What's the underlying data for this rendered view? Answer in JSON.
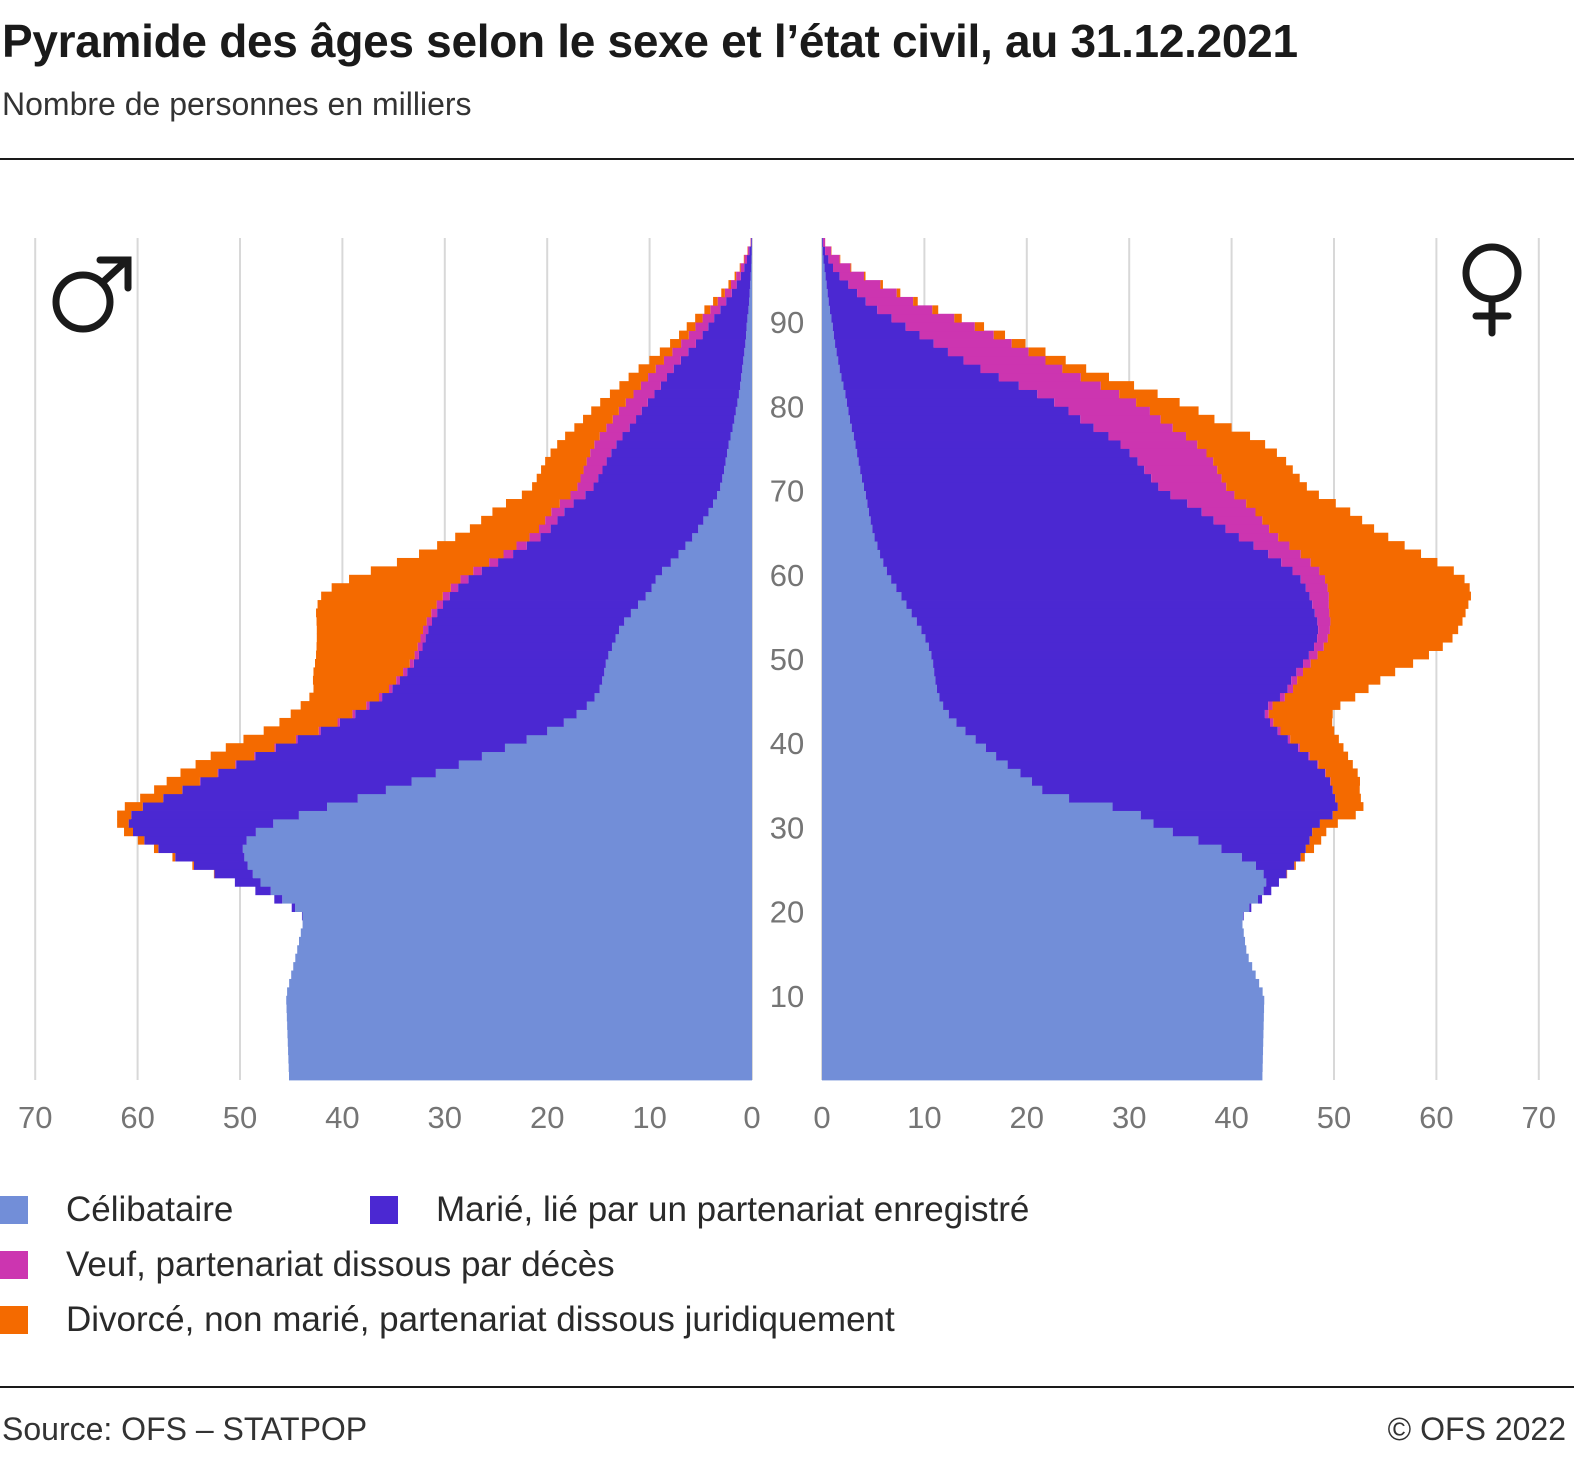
{
  "title": "Pyramide des âges selon le sexe et l’état civil, au 31.12.2021",
  "subtitle": "Nombre de personnes en milliers",
  "source": "Source: OFS – STATPOP",
  "copyright": "© OFS 2022",
  "colors": {
    "single": "#728ed8",
    "married": "#4b28d2",
    "widowed": "#cc35b0",
    "divorced": "#f46a00",
    "grid": "#d8d8d8",
    "tick_text": "#757575"
  },
  "symbols": {
    "male": "♂",
    "female": "♀"
  },
  "legend": [
    {
      "key": "single",
      "label": "Célibataire",
      "color": "#728ed8"
    },
    {
      "key": "married",
      "label": "Marié, lié par un partenariat enregistré",
      "color": "#4b28d2"
    },
    {
      "key": "widowed",
      "label": "Veuf, partenariat dissous par décès",
      "color": "#cc35b0"
    },
    {
      "key": "divorced",
      "label": "Divorcé, non marié, partenariat dissous juridiquement",
      "color": "#f46a00"
    }
  ],
  "chart_data": {
    "type": "bar",
    "orientation": "population-pyramid",
    "unit": "Nombre de personnes en milliers",
    "x_ticks_left": [
      "70",
      "60",
      "50",
      "40",
      "30",
      "20",
      "10",
      "0"
    ],
    "x_ticks_right": [
      "0",
      "10",
      "20",
      "30",
      "40",
      "50",
      "60",
      "70"
    ],
    "age_ticks": [
      "10",
      "20",
      "30",
      "40",
      "50",
      "60",
      "70",
      "80",
      "90"
    ],
    "xlim": [
      0,
      70
    ],
    "ylim": [
      0,
      100
    ],
    "categories": [
      "Célibataire",
      "Marié, lié par un partenariat enregistré",
      "Veuf, partenariat dissous par décès",
      "Divorcé, non marié, partenariat dissous juridiquement"
    ],
    "sexes": [
      "hommes",
      "femmes"
    ],
    "anchor_ages": [
      0,
      10,
      15,
      19,
      20,
      22,
      24,
      26,
      28,
      30,
      32,
      34,
      36,
      38,
      40,
      42,
      44,
      46,
      48,
      50,
      52,
      54,
      56,
      58,
      60,
      62,
      65,
      68,
      70,
      72,
      74,
      76,
      78,
      80,
      82,
      84,
      86,
      88,
      90,
      92,
      94,
      96,
      98,
      100
    ],
    "male": {
      "single": [
        45.2,
        45.5,
        44.5,
        43.8,
        44.0,
        46.5,
        48.5,
        49.5,
        49.8,
        48.0,
        43.0,
        37.0,
        32.0,
        27.5,
        23.0,
        19.0,
        16.5,
        15.0,
        14.5,
        14.2,
        13.5,
        12.8,
        11.5,
        10.0,
        9.2,
        7.5,
        5.5,
        4.0,
        3.2,
        2.8,
        2.5,
        2.2,
        1.8,
        1.5,
        1.2,
        1.0,
        0.8,
        0.6,
        0.5,
        0.3,
        0.2,
        0.1,
        0.05,
        0
      ],
      "married": [
        0,
        0,
        0,
        0,
        0.1,
        1.0,
        3.0,
        6.0,
        9.0,
        13.0,
        17.5,
        19.5,
        21.0,
        22.0,
        22.5,
        22.0,
        21.5,
        20.5,
        19.5,
        18.5,
        18.5,
        18.7,
        19.0,
        19.2,
        18.0,
        16.5,
        14.5,
        14.0,
        12.5,
        12.0,
        11.5,
        10.8,
        9.8,
        9.0,
        8.0,
        7.0,
        5.8,
        4.5,
        3.5,
        2.5,
        1.5,
        0.8,
        0.3,
        0
      ],
      "widowed": [
        0,
        0,
        0,
        0,
        0,
        0,
        0,
        0,
        0,
        0,
        0,
        0,
        0.05,
        0.1,
        0.15,
        0.2,
        0.3,
        0.3,
        0.4,
        0.4,
        0.5,
        0.5,
        0.6,
        0.7,
        0.8,
        0.9,
        1.1,
        1.3,
        1.5,
        1.8,
        2.0,
        2.2,
        2.3,
        2.2,
        2.0,
        1.8,
        1.6,
        1.4,
        1.2,
        0.9,
        0.6,
        0.4,
        0.2,
        0
      ],
      "divorced": [
        0,
        0,
        0,
        0,
        0,
        0,
        0,
        0.2,
        0.5,
        1.0,
        1.5,
        2.5,
        3.5,
        4.0,
        5.0,
        5.5,
        6.2,
        7.0,
        8.5,
        9.5,
        10.0,
        10.5,
        11.5,
        12.0,
        10.5,
        8.5,
        7.0,
        5.5,
        4.5,
        4.2,
        4.0,
        3.5,
        3.0,
        2.6,
        2.2,
        1.8,
        1.3,
        1.0,
        0.8,
        0.5,
        0.3,
        0.1,
        0.05,
        0
      ]
    },
    "female": {
      "single": [
        43.0,
        43.2,
        41.5,
        41.0,
        41.3,
        43.0,
        43.5,
        42.0,
        38.0,
        33.0,
        30.5,
        22.0,
        20.0,
        17.5,
        15.5,
        13.5,
        12.0,
        11.3,
        11.0,
        10.8,
        10.3,
        9.5,
        8.5,
        7.5,
        6.5,
        5.8,
        5.0,
        4.5,
        4.2,
        3.8,
        3.5,
        3.2,
        2.8,
        2.5,
        2.2,
        1.8,
        1.5,
        1.2,
        1.0,
        0.7,
        0.5,
        0.3,
        0.1,
        0
      ],
      "married": [
        0,
        0,
        0,
        0,
        0.1,
        0.5,
        1.5,
        4.5,
        9.5,
        15.0,
        20.0,
        28.0,
        29.5,
        30.5,
        30.5,
        30.5,
        31.0,
        34.0,
        35.0,
        36.5,
        38.0,
        39.0,
        39.5,
        40.0,
        40.0,
        38.5,
        35.0,
        32.0,
        29.0,
        28.0,
        27.0,
        25.5,
        23.0,
        21.0,
        18.0,
        14.5,
        11.5,
        9.0,
        6.5,
        4.0,
        2.5,
        1.0,
        0.3,
        0
      ],
      "widowed": [
        0,
        0,
        0,
        0,
        0,
        0,
        0,
        0,
        0,
        0,
        0,
        0,
        0.05,
        0.1,
        0.2,
        0.3,
        0.4,
        0.5,
        0.6,
        0.8,
        1.0,
        1.2,
        1.5,
        2.0,
        2.5,
        3.0,
        4.0,
        5.5,
        6.5,
        7.0,
        7.5,
        7.5,
        7.8,
        8.0,
        8.0,
        8.0,
        8.0,
        7.5,
        6.5,
        5.0,
        3.5,
        2.0,
        0.8,
        0
      ],
      "divorced": [
        0,
        0,
        0,
        0,
        0,
        0,
        0,
        0.2,
        1.0,
        1.5,
        2.5,
        2.5,
        3.0,
        3.5,
        4.5,
        5.5,
        6.5,
        7.0,
        8.5,
        10.5,
        12.0,
        12.7,
        13.5,
        14.0,
        13.5,
        12.0,
        10.5,
        9.0,
        8.0,
        7.5,
        7.0,
        6.5,
        5.5,
        4.5,
        3.5,
        2.5,
        1.8,
        1.2,
        0.8,
        0.5,
        0.3,
        0.1,
        0.05,
        0
      ]
    }
  }
}
